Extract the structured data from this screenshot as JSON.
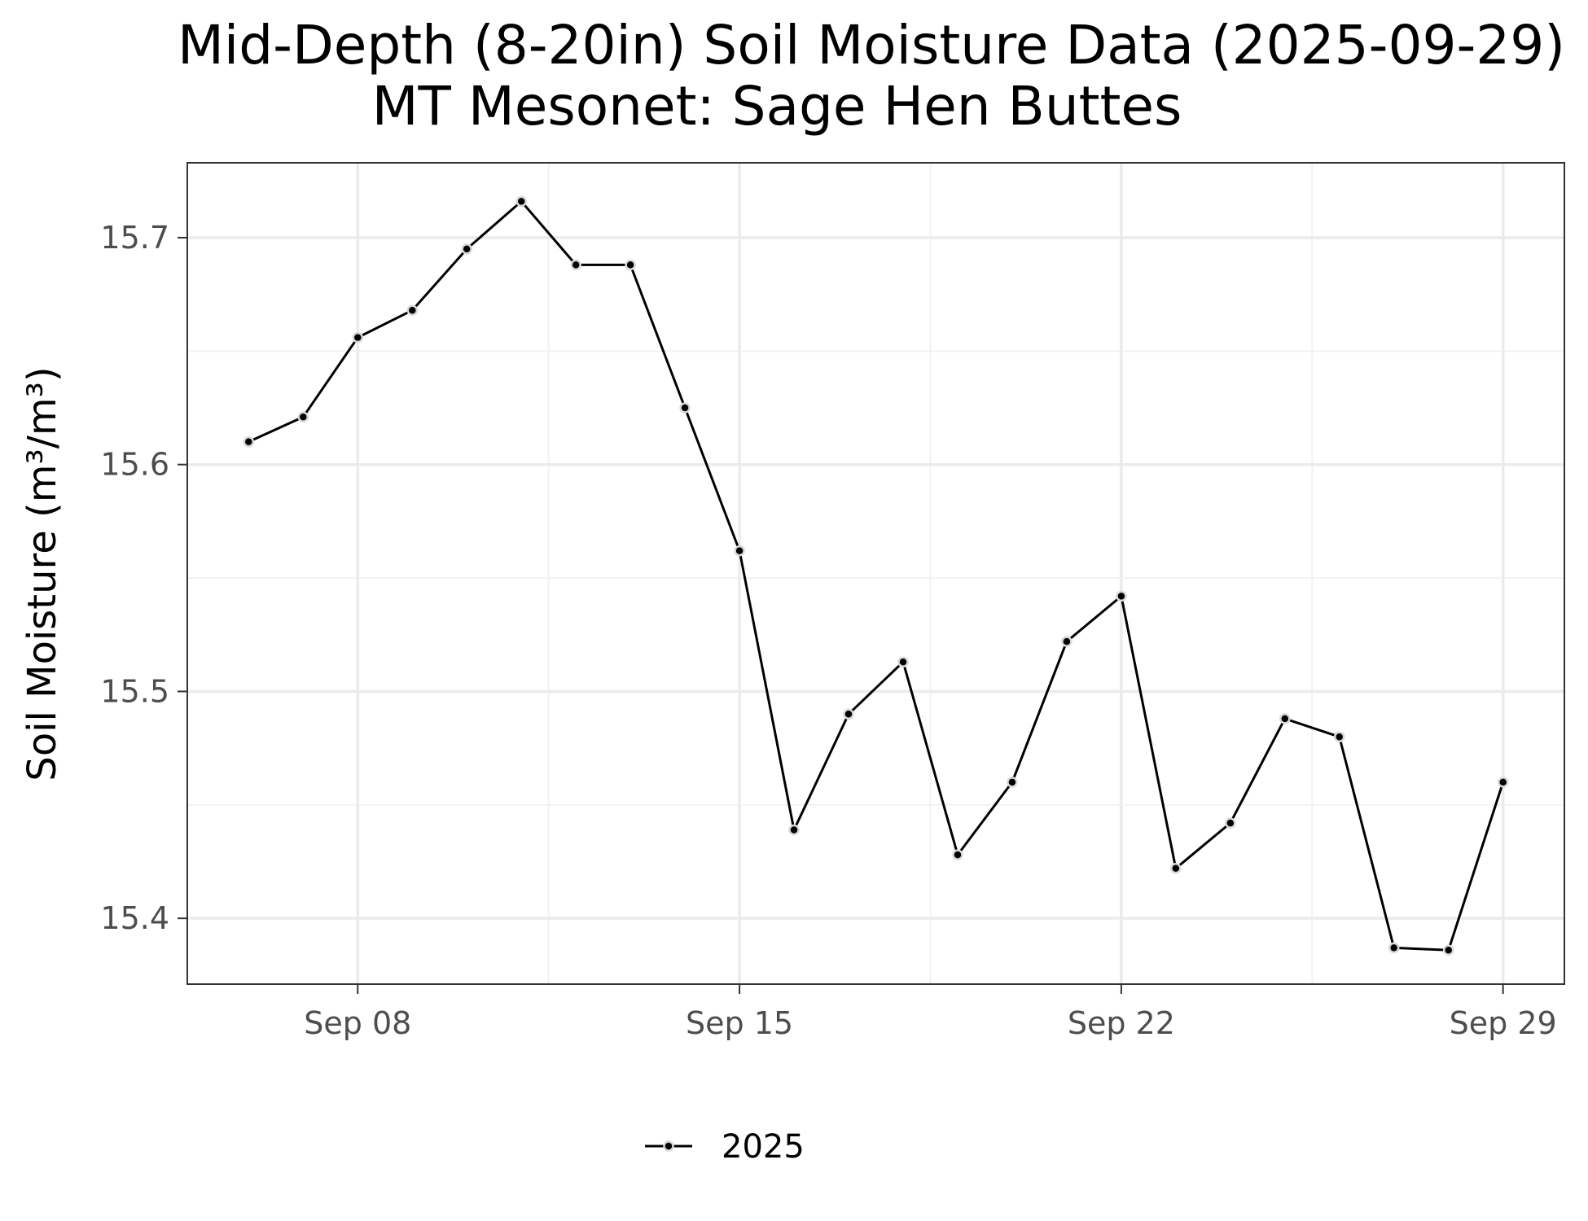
{
  "chart_data": {
    "type": "line",
    "title": "Mid-Depth (8-20in) Soil Moisture Data (2025-09-29)",
    "subtitle": "MT Mesonet: Sage Hen Buttes",
    "xlabel": "",
    "ylabel": "Soil Moisture (m³/m³)",
    "x": [
      "2025-09-06",
      "2025-09-07",
      "2025-09-08",
      "2025-09-09",
      "2025-09-10",
      "2025-09-11",
      "2025-09-12",
      "2025-09-13",
      "2025-09-14",
      "2025-09-15",
      "2025-09-16",
      "2025-09-17",
      "2025-09-18",
      "2025-09-19",
      "2025-09-20",
      "2025-09-21",
      "2025-09-22",
      "2025-09-23",
      "2025-09-24",
      "2025-09-25",
      "2025-09-26",
      "2025-09-27",
      "2025-09-28",
      "2025-09-29"
    ],
    "series": [
      {
        "name": "2025",
        "values": [
          15.61,
          15.621,
          15.656,
          15.668,
          15.695,
          15.716,
          15.688,
          15.688,
          15.625,
          15.562,
          15.439,
          15.49,
          15.513,
          15.428,
          15.46,
          15.522,
          15.542,
          15.422,
          15.442,
          15.488,
          15.48,
          15.387,
          15.386,
          15.46
        ]
      }
    ],
    "xlim": [
      "2025-09-04 21:00",
      "2025-09-30 03:00"
    ],
    "ylim": [
      15.371,
      15.733
    ],
    "x_ticks": [
      "2025-09-08",
      "2025-09-15",
      "2025-09-22",
      "2025-09-29"
    ],
    "x_tick_labels": [
      "Sep 08",
      "Sep 15",
      "Sep 22",
      "Sep 29"
    ],
    "y_ticks": [
      15.4,
      15.5,
      15.6,
      15.7
    ],
    "y_tick_labels": [
      "15.4",
      "15.5",
      "15.6",
      "15.7"
    ],
    "grid": true,
    "legend_position": "bottom",
    "colors": {
      "line": "#000000",
      "point_fill": "#000000",
      "point_stroke": "#d9d9d9",
      "grid_major": "#ebebeb",
      "grid_minor": "#f2f2f2",
      "panel_border": "#333333",
      "tick_text": "#4d4d4d"
    }
  }
}
